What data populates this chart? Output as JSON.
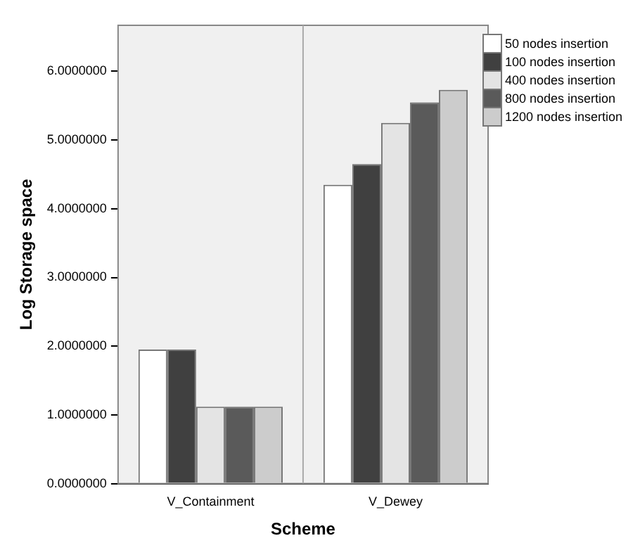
{
  "chart_data": {
    "type": "bar",
    "xlabel": "Scheme",
    "ylabel": "Log Storage space",
    "categories": [
      "V_Containment",
      "V_Dewey"
    ],
    "series": [
      {
        "name": "50 nodes insertion",
        "color": "#ffffff",
        "values": [
          1.95,
          4.35
        ]
      },
      {
        "name": "100 nodes insertion",
        "color": "#404040",
        "values": [
          1.95,
          4.65
        ]
      },
      {
        "name": "400 nodes insertion",
        "color": "#e4e4e4",
        "values": [
          1.12,
          5.25
        ]
      },
      {
        "name": "800 nodes insertion",
        "color": "#5a5a5a",
        "values": [
          1.12,
          5.55
        ]
      },
      {
        "name": "1200 nodes insertion",
        "color": "#cccccc",
        "values": [
          1.12,
          5.73
        ]
      }
    ],
    "ylim": [
      0,
      6.67
    ],
    "yticks": [
      {
        "value": 0,
        "label": "0.0000000"
      },
      {
        "value": 1,
        "label": "1.0000000"
      },
      {
        "value": 2,
        "label": "2.0000000"
      },
      {
        "value": 3,
        "label": "3.0000000"
      },
      {
        "value": 4,
        "label": "4.0000000"
      },
      {
        "value": 5,
        "label": "5.0000000"
      },
      {
        "value": 6,
        "label": "6.0000000"
      }
    ],
    "grid": false,
    "legend": "top right"
  }
}
